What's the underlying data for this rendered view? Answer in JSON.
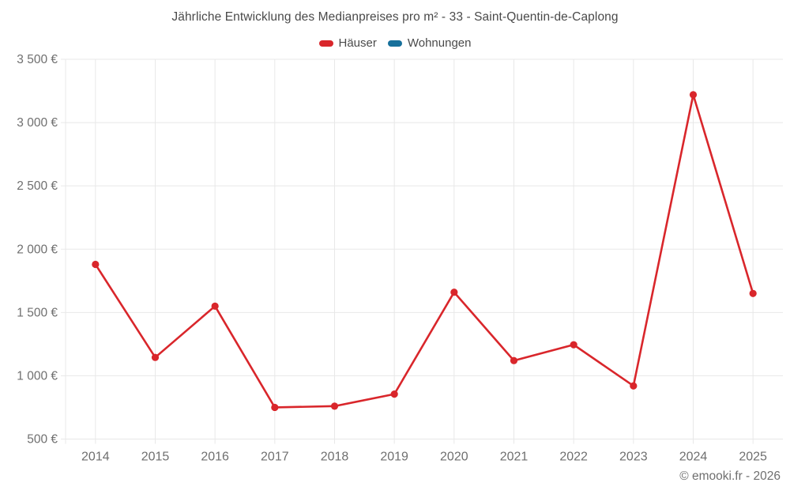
{
  "chart_data": {
    "type": "line",
    "title": "Jährliche Entwicklung des Medianpreises pro m² - 33 - Saint-Quentin-de-Caplong",
    "categories": [
      "2014",
      "2015",
      "2016",
      "2017",
      "2018",
      "2019",
      "2020",
      "2021",
      "2022",
      "2023",
      "2024",
      "2025"
    ],
    "series": [
      {
        "name": "Häuser",
        "color": "#d9262b",
        "values": [
          1880,
          1145,
          1550,
          750,
          760,
          855,
          1660,
          1120,
          1245,
          920,
          3220,
          1650
        ]
      },
      {
        "name": "Wohnungen",
        "color": "#17709b",
        "values": []
      }
    ],
    "xlabel": "",
    "ylabel": "",
    "ylim": [
      500,
      3500
    ],
    "ytick_step": 500,
    "ytick_labels": [
      "500 €",
      "1 000 €",
      "1 500 €",
      "2 000 €",
      "2 500 €",
      "3 000 €",
      "3 500 €"
    ],
    "grid": true,
    "legend_position": "top",
    "marker": "circle",
    "currency": "€"
  },
  "footer": {
    "credit": "© emooki.fr - 2026"
  },
  "colors": {
    "background": "#ffffff",
    "gridline": "#e8e8e8",
    "axis_label": "#6f6f6f",
    "title_text": "#4a4a4a",
    "hauser_red": "#d9262b",
    "wohnungen_blue": "#17709b"
  }
}
